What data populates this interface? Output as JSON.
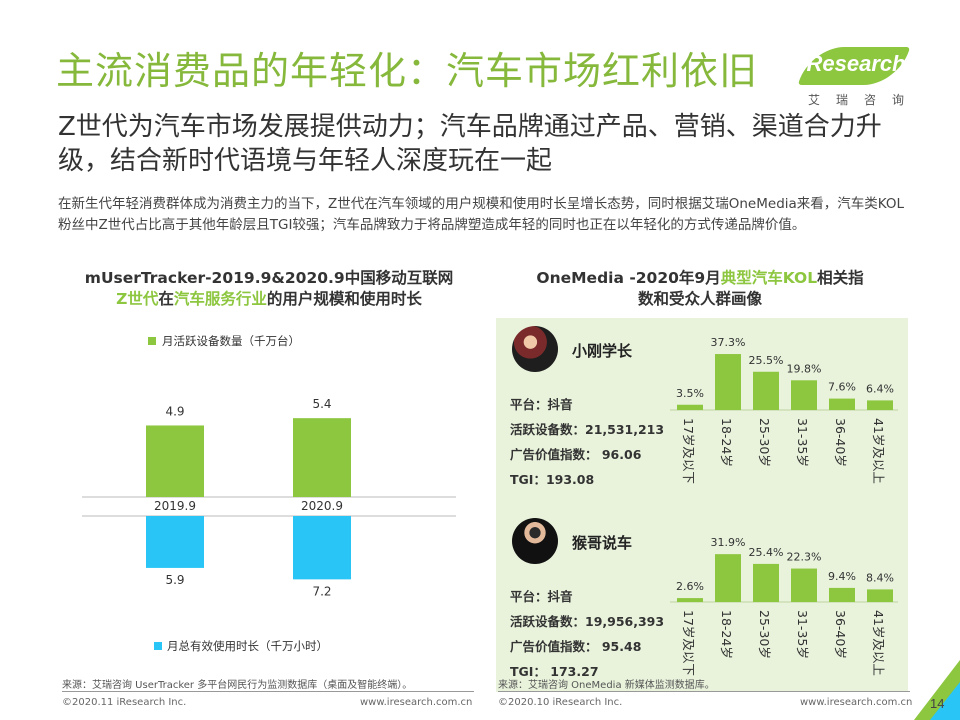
{
  "header": {
    "title": "主流消费品的年轻化：汽车市场红利依旧",
    "subtitle": "Z世代为汽车市场发展提供动力；汽车品牌通过产品、营销、渠道合力升级，结合新时代语境与年轻人深度玩在一起",
    "intro": "在新生代年轻消费群体成为消费主力的当下，Z世代在汽车领域的用户规模和使用时长呈增长态势，同时根据艾瑞OneMedia来看，汽车类KOL粉丝中Z世代占比高于其他年龄层且TGI较强；汽车品牌致力于将品牌塑造成年轻的同时也正在以年轻化的方式传递品牌价值。"
  },
  "logo": {
    "word": "iResearch",
    "cn": "艾瑞咨询"
  },
  "left_title": {
    "line1": "mUserTracker-2019.9&2020.9中国移动互联网",
    "part_a": "Z世代",
    "part_b": "在",
    "part_c": "汽车服务行业",
    "part_d": "的用户规模和使用时长"
  },
  "right_title": {
    "part_a": "OneMedia -2020年9月",
    "part_b": "典型汽车KOL",
    "part_c": "相关指",
    "line2": "数和受众人群画像"
  },
  "kols": [
    {
      "name": "小刚学长",
      "platform": "平台：抖音",
      "devices": "活跃设备数：21,531,213",
      "ad_index": "广告价值指数：  96.06",
      "tgi": "TGI：193.08"
    },
    {
      "name": "猴哥说车",
      "platform": "平台：抖音",
      "devices": "活跃设备数：19,956,393",
      "ad_index": "广告价值指数：  95.48",
      "tgi": "TGI：  173.27"
    }
  ],
  "chart_data": [
    {
      "type": "bar",
      "categories": [
        "2019.9",
        "2020.9"
      ],
      "series": [
        {
          "name": "月活跃设备数量（千万台）",
          "values": [
            4.9,
            5.4
          ],
          "color": "#8dc63f"
        },
        {
          "name": "月总有效使用时长（千万小时）",
          "values": [
            5.9,
            7.2
          ],
          "color": "#29c5f6"
        }
      ]
    },
    {
      "type": "bar",
      "categories": [
        "17岁及以下",
        "18-24岁",
        "25-30岁",
        "31-35岁",
        "36-40岁",
        "41岁及以上"
      ],
      "values": [
        3.5,
        37.3,
        25.5,
        19.8,
        7.6,
        6.4
      ],
      "value_labels": [
        "3.5%",
        "37.3%",
        "25.5%",
        "19.8%",
        "7.6%",
        "6.4%"
      ],
      "color": "#8dc63f"
    },
    {
      "type": "bar",
      "categories": [
        "17岁及以下",
        "18-24岁",
        "25-30岁",
        "31-35岁",
        "36-40岁",
        "41岁及以上"
      ],
      "values": [
        2.6,
        31.9,
        25.4,
        22.3,
        9.4,
        8.4
      ],
      "value_labels": [
        "2.6%",
        "31.9%",
        "25.4%",
        "22.3%",
        "9.4%",
        "8.4%"
      ],
      "color": "#8dc63f"
    }
  ],
  "footer": {
    "source_left": "来源：艾瑞咨询 UserTracker 多平台网民行为监测数据库（桌面及智能终端）。",
    "source_right": "来源：艾瑞咨询 OneMedia 新媒体监测数据库。",
    "copy_left": "©2020.11 iResearch Inc.",
    "url_left": "www.iresearch.com.cn",
    "copy_right": "©2020.10 iResearch Inc.",
    "url_right": "www.iresearch.com.cn",
    "page": "14"
  },
  "colors": {
    "brand_green": "#8dc63f",
    "title_green": "#86b83c",
    "cyan": "#29c5f6",
    "panel_bg": "#e9f3dc"
  }
}
